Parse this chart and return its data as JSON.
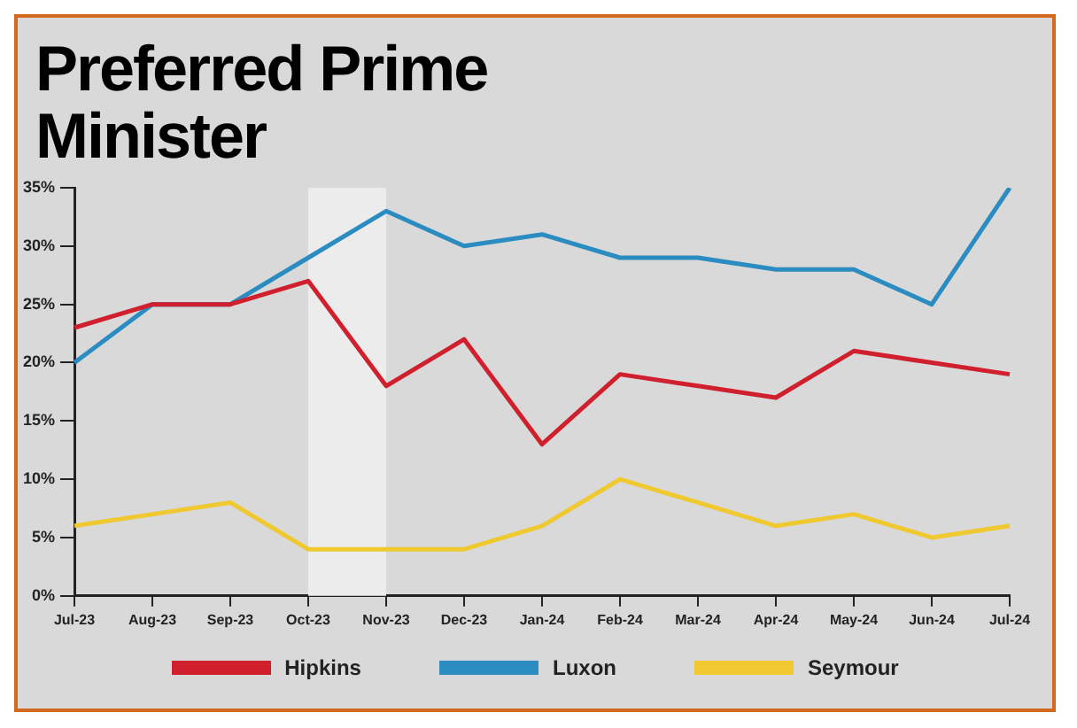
{
  "chart_data": {
    "type": "line",
    "title": "Preferred Prime Minister",
    "categories": [
      "Jul-23",
      "Aug-23",
      "Sep-23",
      "Oct-23",
      "Nov-23",
      "Dec-23",
      "Jan-24",
      "Feb-24",
      "Mar-24",
      "Apr-24",
      "May-24",
      "Jun-24",
      "Jul-24"
    ],
    "series": [
      {
        "name": "Hipkins",
        "color": "#d0202e",
        "values": [
          23,
          25,
          25,
          27,
          18,
          22,
          13,
          19,
          18,
          17,
          21,
          20,
          19
        ]
      },
      {
        "name": "Luxon",
        "color": "#2a8cc0",
        "values": [
          20,
          25,
          25,
          29,
          33,
          30,
          31,
          29,
          29,
          28,
          28,
          25,
          35
        ]
      },
      {
        "name": "Seymour",
        "color": "#f0c830",
        "values": [
          6,
          7,
          8,
          4,
          4,
          4,
          6,
          10,
          8,
          6,
          7,
          5,
          6
        ]
      }
    ],
    "ylim": [
      0,
      35
    ],
    "yticks": [
      {
        "value": 0,
        "label": "0%"
      },
      {
        "value": 5,
        "label": "5%"
      },
      {
        "value": 10,
        "label": "10%"
      },
      {
        "value": 15,
        "label": "15%"
      },
      {
        "value": 20,
        "label": "20%"
      },
      {
        "value": 25,
        "label": "25%"
      },
      {
        "value": 30,
        "label": "30%"
      },
      {
        "value": 35,
        "label": "35%"
      }
    ],
    "bands": [
      {
        "axis": "x",
        "from": "Oct-23",
        "to": "Nov-23",
        "color": "#ececec"
      }
    ],
    "grid": false,
    "legend": "bottom",
    "marker": "none",
    "line_style": "solid"
  }
}
